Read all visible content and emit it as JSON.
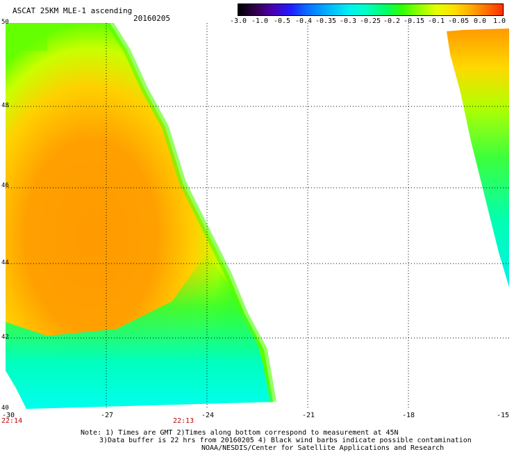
{
  "header": {
    "title": "ASCAT 25KM MLE-1 ascending",
    "date": "20160205"
  },
  "colorbar": {
    "labels": [
      "-3.0",
      "-1.0",
      "-0.5",
      "-0.4",
      "-0.35",
      "-0.3",
      "-0.25",
      "-0.2",
      "-0.15",
      "-0.1",
      "-0.05",
      "0.0",
      "1.0"
    ]
  },
  "axes": {
    "lat_labels": [
      "50",
      "48",
      "46",
      "44",
      "42",
      "40"
    ],
    "lon_labels": [
      "-30",
      "-27",
      "-24",
      "-21",
      "-18",
      "-15"
    ]
  },
  "times": {
    "left": "22:14",
    "mid": "22:13"
  },
  "notes": {
    "line1": "Note: 1) Times are GMT 2)Times along bottom correspond to measurement at 45N",
    "line2": "3)Data buffer is 22 hrs from 20160205 4) Black wind barbs indicate possible contamination",
    "line3": "NOAA/NESDIS/Center for Satellite Applications and Research"
  }
}
